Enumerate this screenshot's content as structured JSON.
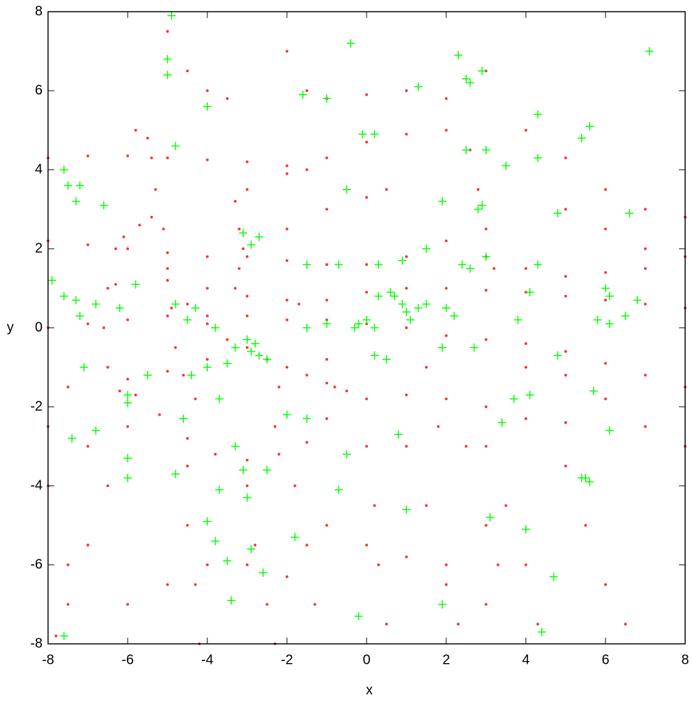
{
  "chart_data": {
    "type": "scatter",
    "xlabel": "x",
    "ylabel": "y",
    "xlim": [
      -8,
      8
    ],
    "ylim": [
      -8,
      8
    ],
    "xticks": [
      -8,
      -6,
      -4,
      -2,
      0,
      2,
      4,
      6,
      8
    ],
    "yticks": [
      -8,
      -6,
      -4,
      -2,
      0,
      2,
      4,
      6,
      8
    ],
    "series": [
      {
        "color": "#ff0000",
        "marker": "dot",
        "x": [
          -6.3,
          -6.5,
          -6.6,
          -6.5,
          -6.2,
          -5.8,
          -5.2,
          -4.5,
          -3.8,
          -3,
          -2.2,
          -1.5,
          -1,
          -0.8,
          -1,
          -8,
          -7,
          -6,
          -5,
          -4,
          -3,
          -2,
          -1.5,
          -5.8,
          -5.5,
          -5.4,
          -5.3,
          -5.4,
          -5.7,
          -6.1,
          -5.1,
          -5,
          -4.9,
          -4.8,
          -4.6,
          -4.3,
          -3.3,
          -3.2,
          -3.1,
          -3.2,
          -3.3,
          -6.3,
          -5,
          -4,
          -3,
          -2,
          -1.7,
          -1,
          0,
          1,
          2,
          3,
          4,
          5,
          6,
          7,
          8,
          -4.5,
          -4,
          -3.5,
          -3,
          -2.5,
          -2,
          -1.5,
          -1,
          -0.5,
          0,
          1,
          2,
          3,
          4,
          5,
          -6,
          -5,
          -4,
          -8,
          -7,
          -6,
          -5,
          -4,
          -3,
          -2,
          -1,
          0,
          1,
          2,
          3,
          4,
          5,
          6,
          7,
          -3,
          -2,
          -1,
          0,
          1,
          2,
          2.6,
          2.8,
          3,
          3.2,
          -5,
          -4.5,
          -4,
          -3.5,
          -2,
          -1.5,
          -1,
          0,
          1,
          2,
          3,
          4,
          5,
          6,
          7,
          8,
          -2,
          -1,
          0,
          0.5,
          -8,
          -7,
          -6,
          -5,
          -4,
          -3,
          -2,
          -1,
          0,
          1,
          2,
          3,
          4,
          5,
          6,
          7,
          8,
          -6,
          -6.5,
          -7,
          -7.5,
          -7.8,
          -4.5,
          -4.5,
          -4.3,
          -4.2,
          -3,
          -2.8,
          -2.5,
          -2.3,
          -1.8,
          -1.5,
          -1.3,
          0,
          0.2,
          0.3,
          0.5,
          1,
          1.5,
          2,
          2.3,
          3,
          3.5,
          4,
          4.3,
          5,
          5.5,
          6,
          6.5,
          5,
          6,
          7,
          8,
          4,
          5,
          6,
          7,
          8,
          -1,
          0,
          1,
          2,
          3,
          -3,
          -2,
          -6,
          -5,
          -4,
          -2.2,
          -2.3,
          1.5,
          1.8,
          2.5,
          3,
          3.3,
          -8,
          -7.5,
          -7,
          -8,
          -7.5
        ],
        "values": [
          2,
          1,
          0,
          -1,
          -1.6,
          -1.7,
          -2.2,
          -2.8,
          -3.2,
          -3.35,
          -3.2,
          -2.9,
          -2.3,
          -1.5,
          -0.8,
          4.3,
          4.35,
          4.35,
          4.3,
          4.25,
          4.2,
          4.1,
          4.0,
          5,
          4.8,
          4.3,
          3.5,
          2.8,
          2.6,
          2.3,
          2.5,
          1.5,
          0.5,
          -0.5,
          -1.2,
          -1.8,
          3.2,
          2.5,
          2,
          1.5,
          1,
          1.1,
          1.2,
          1,
          0.8,
          0.7,
          0.6,
          0.7,
          0.9,
          1,
          1,
          0.95,
          0.9,
          0.8,
          0.7,
          0.6,
          0.5,
          0.6,
          0.1,
          -0.3,
          -0.5,
          -0.8,
          -1,
          -1.2,
          -1.4,
          -1.6,
          -1.8,
          -1.7,
          -1.8,
          -2,
          -2.3,
          -2.4,
          -1.3,
          -1.1,
          -0.8,
          2.2,
          2.1,
          2,
          1.9,
          1.8,
          1.8,
          1.7,
          1.6,
          1.6,
          1.8,
          2.2,
          1.8,
          1.5,
          1.3,
          1.4,
          1.5,
          3.5,
          3.9,
          4.3,
          4.7,
          4.9,
          5,
          4.5,
          3.5,
          2.5,
          1.5,
          7.5,
          6.5,
          6,
          5.8,
          7,
          6,
          5.8,
          5.9,
          6,
          5.8,
          6.5,
          5,
          4.3,
          3.5,
          3,
          2.8,
          2.5,
          3,
          3.3,
          3.5,
          0,
          0.1,
          0.2,
          0.3,
          0.3,
          0.3,
          0.2,
          0.2,
          0.1,
          0,
          -0.2,
          -0.3,
          -0.4,
          -0.6,
          -0.9,
          -1.2,
          -1.5,
          -2.5,
          -4,
          -5.5,
          -7,
          -7.8,
          -3.5,
          -5,
          -6.5,
          -8,
          -4,
          -5.5,
          -7,
          -8,
          -4,
          -5.5,
          -7,
          -3,
          -4.5,
          -6,
          -7.5,
          -3,
          -4.5,
          -6,
          -7.5,
          -3,
          -4.5,
          -6,
          -7.5,
          -3.5,
          -5,
          -6.5,
          -7.5,
          3,
          2.5,
          2,
          1.8,
          -1,
          -1.2,
          -1.8,
          -2.5,
          -3,
          -5,
          -5.5,
          -5.8,
          -6.5,
          -7,
          -6,
          -6.3,
          -7,
          -6.5,
          -6,
          -1.5,
          -2.5,
          -1,
          -2.5,
          -3,
          -5,
          -6,
          -2.5,
          -1.5,
          -3,
          -4,
          -6
        ]
      },
      {
        "color": "#00ff00",
        "marker": "cross",
        "x": [
          -5,
          -5,
          -4.9,
          -4,
          -1.6,
          -1,
          -0.4,
          2.5,
          2.6,
          2.3,
          2.9,
          1.3,
          4.3,
          5.6,
          5.4,
          7.1,
          4.3,
          3.5,
          3,
          2.5,
          -0.1,
          0.2,
          -7.6,
          -7.5,
          -7.3,
          -7.2,
          -6.6,
          -4.8,
          -0.5,
          1.9,
          2.8,
          2.9,
          6.6,
          -3.1,
          -2.7,
          -2.9,
          -1.5,
          -0.7,
          0.3,
          0.9,
          1.5,
          2.4,
          2.6,
          0.7,
          0.9,
          1,
          1.1,
          1.3,
          1.5,
          0.6,
          0.3,
          -0.2,
          -0.3,
          0,
          0.2,
          -1,
          -1.5,
          -7.9,
          -7.6,
          -7.3,
          -7.2,
          -6.8,
          -6.2,
          -5.8,
          -4.8,
          -4.5,
          -4.3,
          -3.8,
          -3.3,
          -3,
          -2.9,
          -2.8,
          -2.7,
          -2.5,
          -3.5,
          -4,
          -4.4,
          -5.5,
          -6,
          -6,
          -6,
          -6,
          -7.4,
          -6.8,
          -7.1,
          -4.6,
          -4.8,
          -3.7,
          -3.7,
          -3.3,
          -3.1,
          -3,
          -2.5,
          -2,
          -1.5,
          -0.5,
          -0.7,
          -4,
          -3.8,
          -3.5,
          -2.9,
          -3.4,
          -2.6,
          -1.8,
          -0.2,
          0.8,
          1,
          1.9,
          3.1,
          4,
          4.7,
          4.4,
          -7.6,
          3.4,
          3.7,
          4.1,
          4.8,
          5.5,
          5.6,
          5.4,
          5.7,
          6.1,
          6,
          6.1,
          5.8,
          6.1,
          6.5,
          6.8,
          3.8,
          4.1,
          4.8,
          4.3,
          3,
          2,
          2.2,
          2.7,
          1.9,
          0.5,
          0.2
        ],
        "values": [
          6.8,
          6.4,
          7.9,
          5.6,
          5.9,
          5.8,
          7.2,
          6.3,
          6.2,
          6.9,
          6.5,
          6.1,
          5.4,
          5.1,
          4.8,
          7,
          4.3,
          4.1,
          4.5,
          4.5,
          4.9,
          4.9,
          4,
          3.6,
          3.2,
          3.6,
          3.1,
          4.6,
          3.5,
          3.2,
          3,
          3.1,
          2.9,
          2.4,
          2.3,
          2.1,
          1.6,
          1.6,
          1.6,
          1.7,
          2,
          1.6,
          1.5,
          0.8,
          0.6,
          0.4,
          0.2,
          0.5,
          0.6,
          0.9,
          0.8,
          0.1,
          0,
          0.2,
          0,
          0.1,
          0,
          1.2,
          0.8,
          0.7,
          0.3,
          0.6,
          0.5,
          1.1,
          0.6,
          0.2,
          0.5,
          0,
          -0.5,
          -0.3,
          -0.6,
          -0.4,
          -0.7,
          -0.8,
          -0.9,
          -1,
          -1.2,
          -1.2,
          -1.7,
          -1.9,
          -3.3,
          -3.8,
          -2.8,
          -2.6,
          -1,
          -2.3,
          -3.7,
          -1.8,
          -4.1,
          -3,
          -3.6,
          -4.3,
          -3.6,
          -2.2,
          -2.3,
          -3.2,
          -4.1,
          -4.9,
          -5.4,
          -5.9,
          -5.6,
          -6.9,
          -6.2,
          -5.3,
          -7.3,
          -2.7,
          -4.6,
          -7,
          -4.8,
          -5.1,
          -6.3,
          -7.7,
          -7.8,
          -2.4,
          -1.8,
          -1.7,
          -0.7,
          -3.8,
          -3.9,
          -3.8,
          -1.6,
          -2.6,
          1,
          0.8,
          0.2,
          0.1,
          0.3,
          0.7,
          0.2,
          0.9,
          2.9,
          1.6,
          1.8,
          0.5,
          0.3,
          -0.5,
          -0.5,
          -0.8,
          -0.7
        ]
      }
    ]
  }
}
